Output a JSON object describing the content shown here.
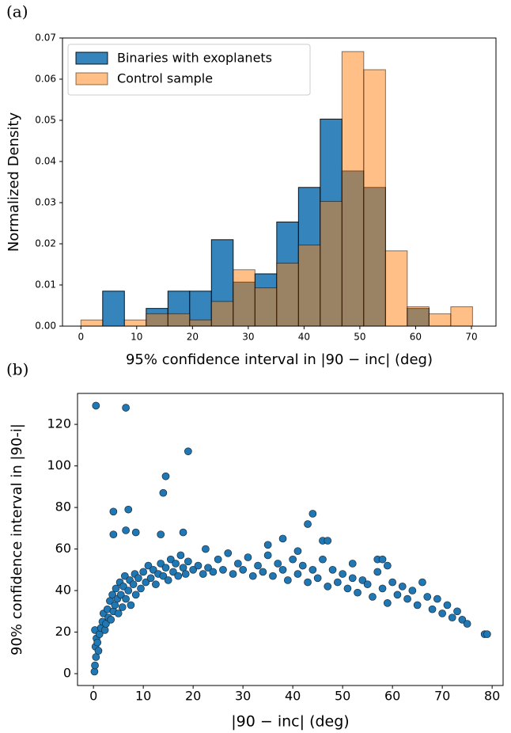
{
  "chart_data": [
    {
      "type": "histogram",
      "panel_label": "(a)",
      "xlabel": "95% confidence interval in |90 − inc| (deg)",
      "ylabel": "Normalized Density",
      "bins": [
        0,
        3.9,
        7.8,
        11.7,
        15.6,
        19.5,
        23.4,
        27.3,
        31.2,
        35.1,
        39,
        42.9,
        46.8,
        50.7,
        54.6,
        58.5,
        62.4,
        66.3,
        70.2
      ],
      "series": [
        {
          "name": "Binaries with exoplanets",
          "color": "#1f77b4",
          "alpha": 0.9,
          "values": [
            0,
            0.0085,
            0,
            0.0043,
            0.0085,
            0.0085,
            0.021,
            0.0107,
            0.0127,
            0.0253,
            0.0337,
            0.0503,
            0.0377,
            0.0337,
            0,
            0.0043,
            0,
            0
          ]
        },
        {
          "name": "Control sample",
          "color": "#ff7f0e",
          "alpha": 0.5,
          "values": [
            0.0015,
            0,
            0.0015,
            0.003,
            0.003,
            0.0015,
            0.006,
            0.0137,
            0.0093,
            0.0153,
            0.0197,
            0.0303,
            0.0667,
            0.0623,
            0.0183,
            0.0047,
            0.003,
            0.0047
          ]
        }
      ],
      "xlim": [
        -3.3,
        74.4
      ],
      "ylim": [
        0,
        0.07
      ],
      "xticks": [
        0,
        10,
        20,
        30,
        40,
        50,
        60,
        70
      ],
      "yticks": [
        {
          "value": 0,
          "label": "0.00"
        },
        0.01,
        0.02,
        0.03,
        0.04,
        0.05,
        0.06,
        0.07
      ],
      "legend": "upper left"
    },
    {
      "type": "scatter",
      "panel_label": "(b)",
      "xlabel": "|90 − inc| (deg)",
      "ylabel": "90% confidence interval in |90-i|",
      "color": "#1f77b4",
      "x": [
        0.2,
        0.3,
        0.5,
        0.4,
        0.6,
        0.3,
        0.8,
        1,
        1.2,
        1.5,
        1.8,
        2,
        2.3,
        2.5,
        2.8,
        3,
        3.3,
        3.5,
        3.8,
        4,
        4.3,
        4.5,
        4.8,
        5,
        5.3,
        5.5,
        5.8,
        6,
        6.3,
        6.5,
        7,
        7.3,
        7.5,
        8,
        8.3,
        8.5,
        9,
        9.5,
        10,
        10.5,
        11,
        11.5,
        12,
        12.5,
        13,
        13.5,
        14,
        14.5,
        15,
        15.5,
        16,
        16.5,
        17,
        17.5,
        18,
        18.5,
        19,
        20,
        21,
        22,
        22.5,
        23,
        24,
        25,
        26,
        27,
        28,
        29,
        30,
        31,
        32,
        33,
        34,
        35,
        36,
        37,
        38,
        39,
        40,
        41,
        42,
        43,
        44,
        45,
        46,
        47,
        48,
        49,
        50,
        51,
        52,
        53,
        54,
        55,
        56,
        57,
        58,
        59,
        60,
        61,
        62,
        63,
        64,
        65,
        66,
        67,
        68,
        69,
        70,
        71,
        72,
        73,
        74,
        75,
        78.5,
        79,
        0.5,
        6.5,
        19,
        14.5,
        14,
        4,
        7,
        4,
        6.5,
        8.5,
        13.5,
        18,
        38,
        43,
        44,
        41,
        35,
        46,
        47,
        57,
        58,
        59,
        52
      ],
      "values": [
        1,
        4,
        8,
        13,
        17,
        21,
        15,
        11,
        19,
        22,
        25,
        29,
        21,
        24,
        31,
        27,
        35,
        26,
        38,
        30,
        33,
        41,
        36,
        29,
        44,
        38,
        32,
        42,
        47,
        36,
        40,
        45,
        33,
        43,
        48,
        38,
        46,
        41,
        49,
        44,
        52,
        46,
        50,
        43,
        48,
        53,
        47,
        51,
        45,
        55,
        49,
        53,
        47,
        57,
        51,
        48,
        54,
        50,
        52,
        48,
        60,
        51,
        49,
        55,
        50,
        58,
        48,
        53,
        50,
        56,
        47,
        52,
        49,
        57,
        47,
        53,
        50,
        45,
        55,
        48,
        52,
        44,
        50,
        46,
        55,
        42,
        50,
        44,
        48,
        41,
        46,
        39,
        45,
        43,
        37,
        49,
        41,
        34,
        44,
        38,
        42,
        36,
        40,
        33,
        44,
        37,
        31,
        36,
        29,
        33,
        27,
        30,
        26,
        24,
        19,
        19,
        129,
        128,
        107,
        95,
        87,
        78,
        79,
        67,
        69,
        68,
        67,
        68,
        65,
        72,
        77,
        59,
        62,
        64,
        64,
        55,
        55,
        52,
        53
      ],
      "xlim": [
        -3.2,
        82.2
      ],
      "ylim": [
        -5.7,
        134.9
      ],
      "xticks": [
        0,
        10,
        20,
        30,
        40,
        50,
        60,
        70,
        80
      ],
      "yticks": [
        0,
        20,
        40,
        60,
        80,
        100,
        120
      ]
    }
  ]
}
